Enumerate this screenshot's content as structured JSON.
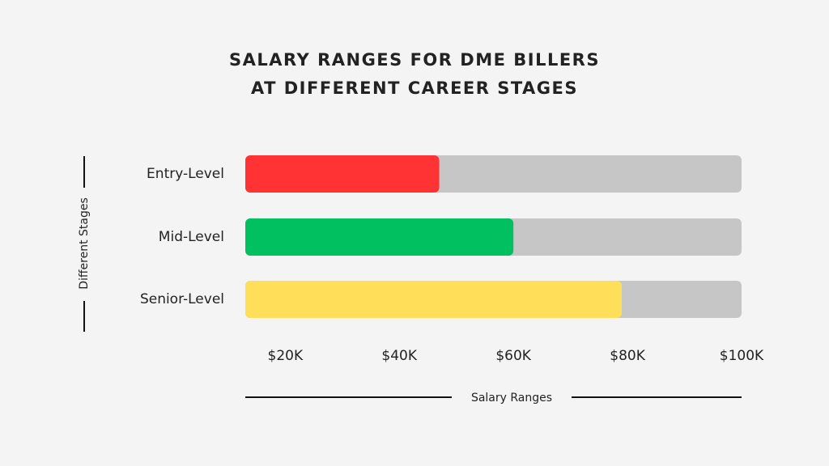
{
  "chart_data": {
    "type": "hbar",
    "title": [
      "SALARY RANGES FOR DME BILLERS",
      "AT DIFFERENT CAREER STAGES"
    ],
    "x_label": "Salary Ranges",
    "y_label": "Different Stages",
    "categories": [
      "Entry-Level",
      "Mid-Level",
      "Senior-Level"
    ],
    "values": [
      47,
      60,
      79
    ],
    "colors": [
      "#ff3333",
      "#00c060",
      "#ffde5a"
    ],
    "track_color": "#c6c6c6",
    "xlim": [
      13,
      100
    ],
    "xticks": [
      {
        "value": 20,
        "label": "$20K"
      },
      {
        "value": 40,
        "label": "$40K"
      },
      {
        "value": 60,
        "label": "$60K"
      },
      {
        "value": 80,
        "label": "$80K"
      },
      {
        "value": 100,
        "label": "$100K"
      }
    ],
    "grid": false
  }
}
